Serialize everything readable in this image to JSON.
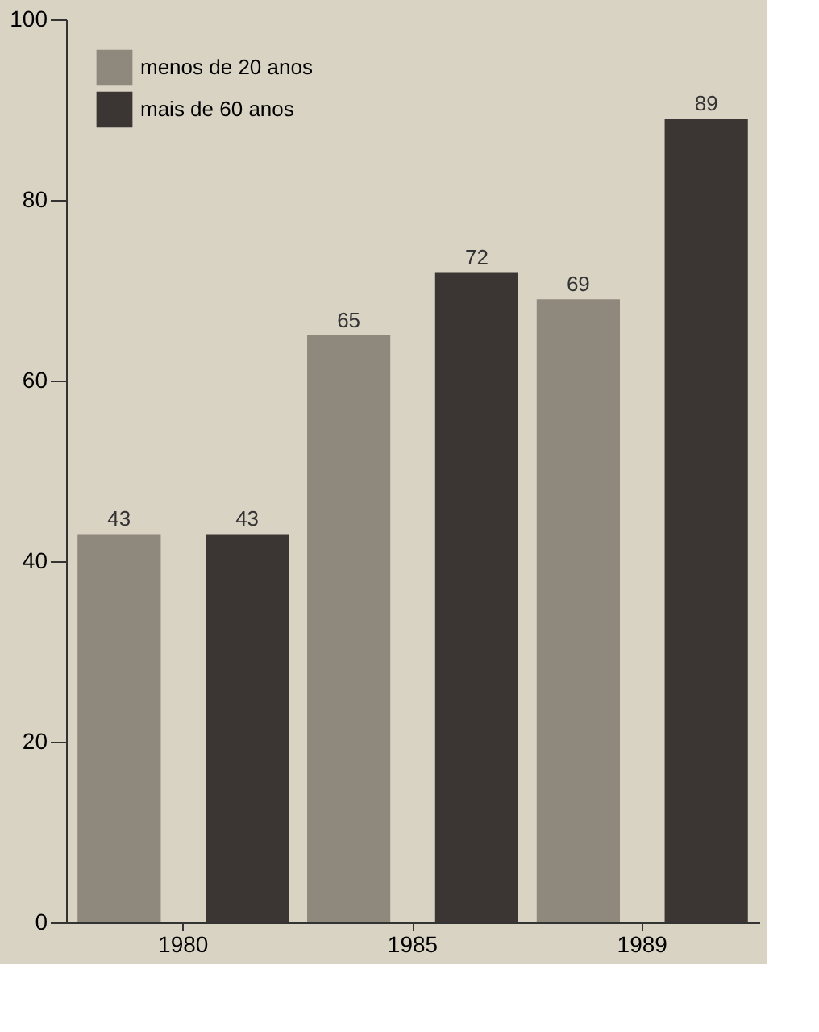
{
  "chart_data": {
    "type": "bar",
    "categories": [
      "1980",
      "1985",
      "1989"
    ],
    "series": [
      {
        "name": "menos de 20 anos",
        "color": "#8f887c",
        "values": [
          43,
          65,
          69
        ]
      },
      {
        "name": "mais de 60 anos",
        "color": "#3b3633",
        "values": [
          43,
          72,
          89
        ]
      }
    ],
    "ylim": [
      0,
      100
    ],
    "yticks": [
      0,
      20,
      40,
      60,
      80,
      100
    ],
    "data_labels": true,
    "legend": "top left",
    "grid": false
  }
}
